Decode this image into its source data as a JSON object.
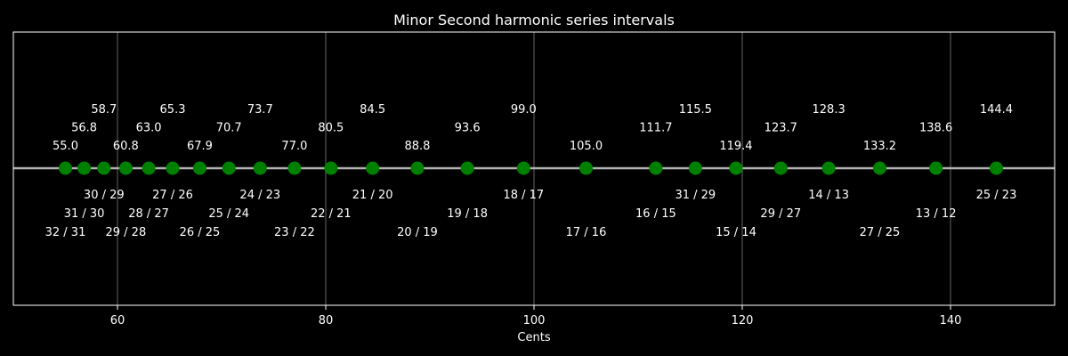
{
  "chart_data": {
    "type": "scatter",
    "title": "Minor Second harmonic series intervals",
    "xlabel": "Cents",
    "ylabel": "",
    "xlim": [
      50,
      150
    ],
    "xticks": [
      60,
      80,
      100,
      120,
      140
    ],
    "grid": "vertical",
    "colors": {
      "point": "#008000",
      "line": "#b3b3b3",
      "grid": "#808080",
      "text": "#ffffff",
      "background": "#000000"
    },
    "points": [
      {
        "cents": 55.0,
        "value_label": "55.0",
        "ratio": "32 / 31"
      },
      {
        "cents": 56.8,
        "value_label": "56.8",
        "ratio": "31 / 30"
      },
      {
        "cents": 58.7,
        "value_label": "58.7",
        "ratio": "30 / 29"
      },
      {
        "cents": 60.8,
        "value_label": "60.8",
        "ratio": "29 / 28"
      },
      {
        "cents": 63.0,
        "value_label": "63.0",
        "ratio": "28 / 27"
      },
      {
        "cents": 65.3,
        "value_label": "65.3",
        "ratio": "27 / 26"
      },
      {
        "cents": 67.9,
        "value_label": "67.9",
        "ratio": "26 / 25"
      },
      {
        "cents": 70.7,
        "value_label": "70.7",
        "ratio": "25 / 24"
      },
      {
        "cents": 73.7,
        "value_label": "73.7",
        "ratio": "24 / 23"
      },
      {
        "cents": 77.0,
        "value_label": "77.0",
        "ratio": "23 / 22"
      },
      {
        "cents": 80.5,
        "value_label": "80.5",
        "ratio": "22 / 21"
      },
      {
        "cents": 84.5,
        "value_label": "84.5",
        "ratio": "21 / 20"
      },
      {
        "cents": 88.8,
        "value_label": "88.8",
        "ratio": "20 / 19"
      },
      {
        "cents": 93.6,
        "value_label": "93.6",
        "ratio": "19 / 18"
      },
      {
        "cents": 99.0,
        "value_label": "99.0",
        "ratio": "18 / 17"
      },
      {
        "cents": 105.0,
        "value_label": "105.0",
        "ratio": "17 / 16"
      },
      {
        "cents": 111.7,
        "value_label": "111.7",
        "ratio": "16 / 15"
      },
      {
        "cents": 115.5,
        "value_label": "115.5",
        "ratio": "31 / 29"
      },
      {
        "cents": 119.4,
        "value_label": "119.4",
        "ratio": "15 / 14"
      },
      {
        "cents": 123.7,
        "value_label": "123.7",
        "ratio": "29 / 27"
      },
      {
        "cents": 128.3,
        "value_label": "128.3",
        "ratio": "14 / 13"
      },
      {
        "cents": 133.2,
        "value_label": "133.2",
        "ratio": "27 / 25"
      },
      {
        "cents": 138.6,
        "value_label": "138.6",
        "ratio": "13 / 12"
      },
      {
        "cents": 144.4,
        "value_label": "144.4",
        "ratio": "25 / 23"
      }
    ]
  }
}
